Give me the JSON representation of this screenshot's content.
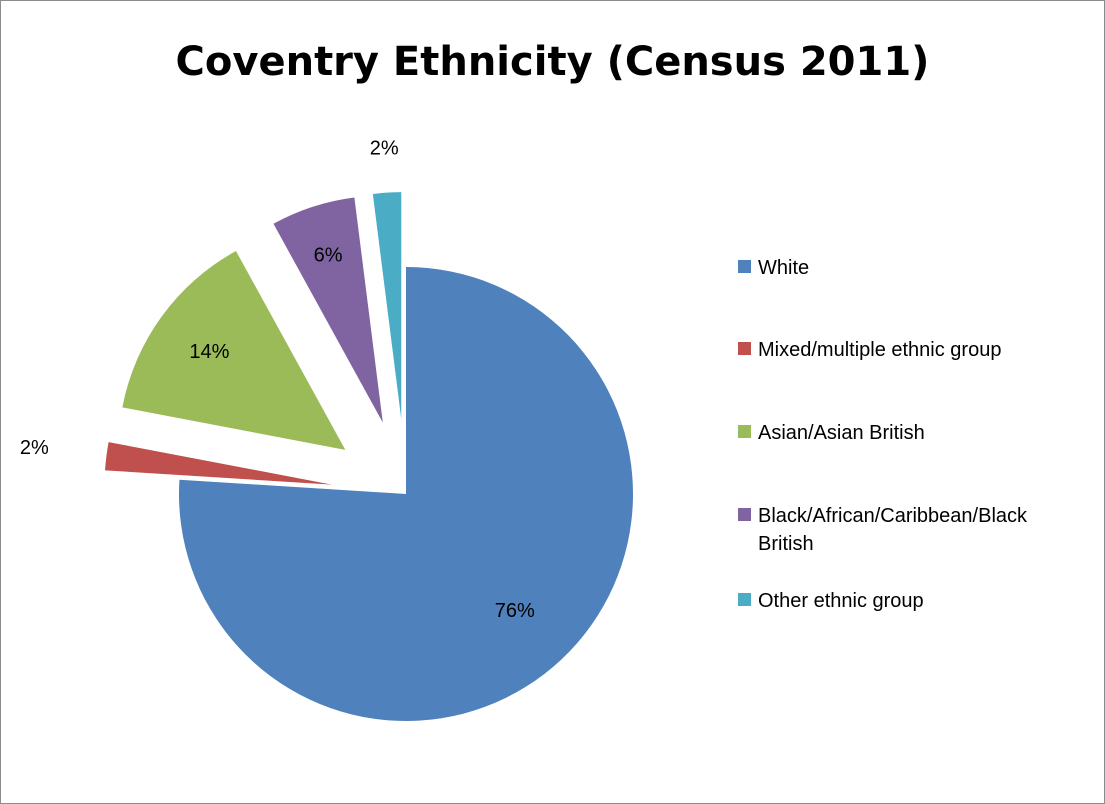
{
  "chart_data": {
    "type": "pie",
    "title": "Coventry Ethnicity (Census 2011)",
    "categories": [
      "White",
      "Mixed/multiple ethnic group",
      "Asian/Asian British",
      "Black/African/Caribbean/Black British",
      "Other ethnic group"
    ],
    "values": [
      76,
      2,
      14,
      6,
      2
    ],
    "data_labels": [
      "76%",
      "2%",
      "14%",
      "6%",
      "2%"
    ],
    "colors": [
      "#4f81bd",
      "#c0504d",
      "#9bbb59",
      "#8064a2",
      "#4bacc6"
    ],
    "exploded": [
      false,
      true,
      true,
      true,
      true
    ],
    "legend_position": "right"
  }
}
